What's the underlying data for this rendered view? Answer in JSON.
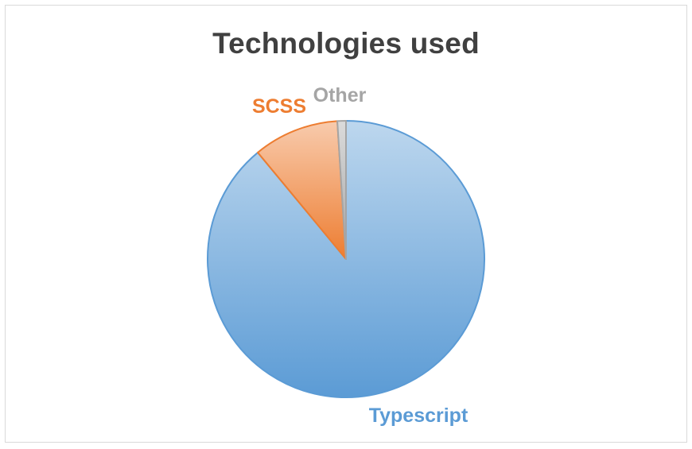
{
  "chart_data": {
    "type": "pie",
    "title": "Technologies used",
    "slices": [
      {
        "label": "Typescript",
        "value": 89,
        "color": "#5b9bd5"
      },
      {
        "label": "SCSS",
        "value": 10,
        "color": "#ed7d31"
      },
      {
        "label": "Other",
        "value": 1,
        "color": "#a5a5a5"
      }
    ],
    "legend": "none",
    "data_labels": "category names outside slices"
  }
}
